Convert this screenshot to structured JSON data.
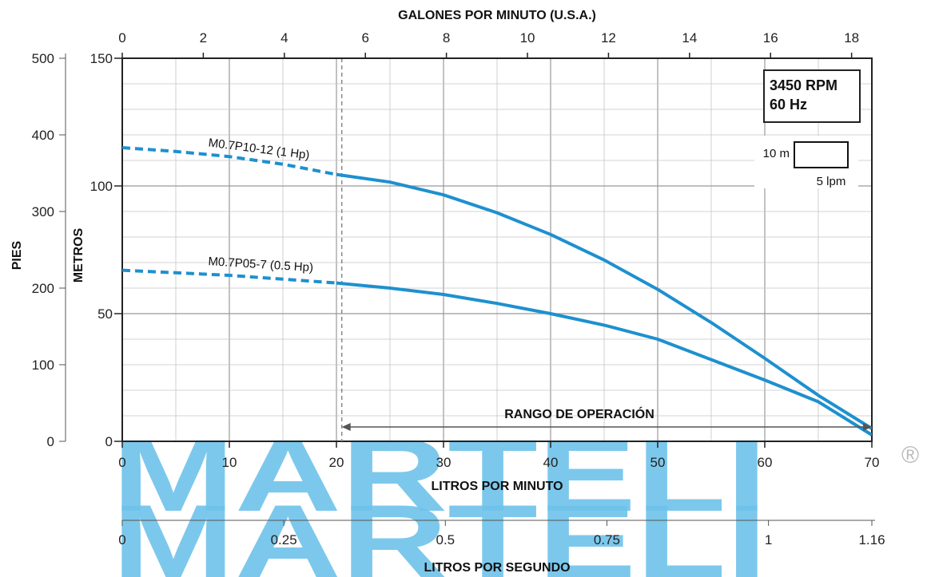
{
  "chart_data": {
    "type": "line",
    "x": {
      "label": "LITROS POR MINUTO",
      "range": [
        0,
        70
      ],
      "ticks": [
        0,
        10,
        20,
        30,
        40,
        50,
        60,
        70
      ]
    },
    "x_top": {
      "label": "GALONES POR MINUTO (U.S.A.)",
      "range": [
        0,
        18.5
      ],
      "ticks": [
        0,
        2,
        4,
        6,
        8,
        10,
        12,
        14,
        16,
        18
      ]
    },
    "x_bottom2": {
      "label": "LITROS POR SEGUNDO",
      "range": [
        0,
        1.16
      ],
      "ticks": [
        0,
        0.25,
        0.5,
        0.75,
        1,
        1.16
      ]
    },
    "y": {
      "label": "METROS",
      "range": [
        0,
        150
      ],
      "ticks": [
        0,
        50,
        100,
        150
      ]
    },
    "y2": {
      "label": "PIES",
      "range": [
        0,
        500
      ],
      "ticks": [
        0,
        100,
        200,
        300,
        400,
        500
      ]
    },
    "grid": true,
    "series": [
      {
        "name": "M0.7P10-12 (1 Hp)",
        "color": "#1e90cf",
        "dashed": {
          "x": [
            0,
            5,
            10,
            15,
            20
          ],
          "y": [
            115,
            113.5,
            111.5,
            108.5,
            104.5
          ]
        },
        "solid": {
          "x": [
            20,
            25,
            30,
            35,
            40,
            45,
            50,
            55,
            60,
            65,
            70
          ],
          "y": [
            104.5,
            101.5,
            96.5,
            89.5,
            81,
            71,
            59.5,
            46.5,
            32.5,
            18,
            5
          ]
        }
      },
      {
        "name": "M0.7P05-7 (0.5 Hp)",
        "color": "#1e90cf",
        "dashed": {
          "x": [
            0,
            5,
            10,
            15,
            20
          ],
          "y": [
            67,
            66,
            65,
            63.5,
            62
          ]
        },
        "solid": {
          "x": [
            20,
            25,
            30,
            35,
            40,
            45,
            50,
            55,
            60,
            65,
            70
          ],
          "y": [
            62,
            60,
            57.5,
            54,
            50,
            45.5,
            40,
            32,
            24,
            15.5,
            2.5
          ]
        }
      }
    ],
    "operating_range": {
      "label": "RANGO DE OPERACIÓN",
      "from": 20.5,
      "to": 70
    },
    "info_box": {
      "line1": "3450 RPM",
      "line2": "60 Hz"
    },
    "scale_legend": {
      "vertical": "10 m",
      "horizontal": "5 lpm"
    }
  },
  "watermark": {
    "text": "MARTELI",
    "registered": "®"
  }
}
